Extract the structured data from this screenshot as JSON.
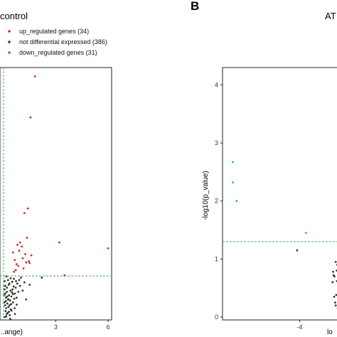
{
  "chart_data": [
    {
      "type": "scatter",
      "title": "control",
      "xlabel": "...ange)",
      "ylabel": "",
      "x_ticks": [
        "3",
        "6"
      ],
      "x_tick_values": [
        3,
        6
      ],
      "xlim": [
        -0.2,
        6.2
      ],
      "ylim": [
        0,
        4.3
      ],
      "legend_position": "top-left",
      "legend": [
        {
          "label": "up_regulated genes (34)",
          "color": "#d62728",
          "series": "up"
        },
        {
          "label": "not differential expressed (386)",
          "color": "#333333",
          "series": "not"
        },
        {
          "label": "down_regulated genes (31)",
          "color": "#2ca02c",
          "series": "down"
        }
      ],
      "thresholds": {
        "x": 0.0,
        "y": 0.75
      },
      "threshold_color": "#4caf50",
      "series": [
        {
          "key": "up",
          "color": "#d62728",
          "x": [
            1.8,
            1.55,
            1.4,
            1.2,
            1.05,
            0.95,
            1.25,
            1.1,
            1.3,
            0.85,
            1.5,
            0.7,
            0.9,
            1.15,
            1.35,
            0.65,
            0.75,
            1.6,
            0.55,
            0.6,
            3.2,
            6.0,
            3.5,
            1.45,
            0.8
          ],
          "y": [
            4.15,
            3.45,
            1.9,
            1.82,
            1.25,
            1.32,
            1.12,
            1.05,
            0.98,
            0.92,
            0.97,
            0.85,
            1.18,
            0.88,
            1.4,
            1.02,
            0.95,
            1.1,
            1.15,
            0.82,
            1.32,
            1.22,
            0.76,
            1.0,
            1.28
          ]
        },
        {
          "key": "not",
          "color": "#333333",
          "x": [
            0.05,
            0.1,
            0.15,
            0.2,
            0.25,
            0.3,
            0.35,
            0.4,
            0.45,
            0.5,
            0.55,
            0.6,
            0.65,
            0.7,
            0.75,
            0.8,
            0.85,
            0.9,
            0.95,
            1.0,
            0.12,
            0.22,
            0.32,
            0.42,
            0.52,
            0.62,
            0.72,
            0.18,
            0.28,
            0.38,
            0.48,
            0.58,
            0.08,
            0.14,
            0.24,
            0.34,
            0.44,
            0.54,
            0.64,
            1.1,
            1.2,
            1.3,
            1.5,
            0.06,
            0.16,
            0.26,
            0.36,
            0.46,
            0.11,
            0.21,
            0.31,
            0.41,
            0.09,
            0.19,
            0.29,
            0.39,
            0.04,
            0.07,
            0.13,
            0.17,
            2.2,
            0.66,
            0.76
          ],
          "y": [
            0.3,
            0.45,
            0.2,
            0.55,
            0.35,
            0.6,
            0.25,
            0.5,
            0.4,
            0.65,
            0.3,
            0.7,
            0.45,
            0.55,
            0.38,
            0.62,
            0.48,
            0.68,
            0.58,
            0.72,
            0.15,
            0.28,
            0.42,
            0.18,
            0.52,
            0.36,
            0.66,
            0.1,
            0.22,
            0.33,
            0.47,
            0.57,
            0.05,
            0.38,
            0.12,
            0.62,
            0.27,
            0.44,
            0.2,
            0.5,
            0.64,
            0.35,
            0.6,
            0.52,
            0.06,
            0.68,
            0.08,
            0.16,
            0.58,
            0.4,
            0.14,
            0.71,
            0.25,
            0.48,
            0.35,
            0.02,
            0.43,
            0.66,
            0.32,
            0.74,
            0.72,
            0.1,
            0.26
          ]
        },
        {
          "key": "down",
          "color": "#2ca02c",
          "x": [
            0.03,
            0.06
          ],
          "y": [
            0.58,
            0.42
          ]
        }
      ]
    },
    {
      "type": "scatter",
      "title": "AT",
      "xlabel": "lo",
      "ylabel": "-log10(p_value)",
      "y_ticks": [
        "0",
        "1",
        "2",
        "3",
        "4"
      ],
      "y_tick_values": [
        0,
        1,
        2,
        3,
        4
      ],
      "x_ticks": [
        "-4"
      ],
      "x_tick_values": [
        -4
      ],
      "xlim": [
        -7.0,
        -2.3
      ],
      "ylim": [
        -0.05,
        4.3
      ],
      "thresholds": {
        "y": 1.3
      },
      "threshold_color": "#4caf50",
      "series": [
        {
          "key": "down",
          "color": "#1abc9c",
          "x": [
            -6.6,
            -6.6,
            -6.45,
            -3.75,
            -2.35,
            -2.32,
            -2.38,
            -2.42,
            -2.36
          ],
          "y": [
            2.67,
            2.32,
            2.0,
            1.45,
            3.35,
            2.9,
            2.2,
            1.97,
            3.3
          ]
        },
        {
          "key": "not",
          "color": "#333333",
          "x": [
            -4.1,
            -2.5,
            -2.6,
            -2.7,
            -2.45,
            -2.55,
            -2.65,
            -2.5,
            -2.4,
            -2.58,
            -2.68,
            -2.48,
            -2.62,
            -2.42,
            -2.52,
            -2.72,
            -2.46,
            -2.56,
            -2.66,
            -2.44,
            -2.54,
            -2.6,
            -2.38
          ],
          "y": [
            1.15,
            1.2,
            0.95,
            0.78,
            0.85,
            0.62,
            0.7,
            0.55,
            0.45,
            0.38,
            0.72,
            0.3,
            0.25,
            0.5,
            0.15,
            0.6,
            0.05,
            0.8,
            0.35,
            1.05,
            0.9,
            0.2,
            0.65
          ]
        }
      ]
    }
  ],
  "panel_label_b": "B"
}
